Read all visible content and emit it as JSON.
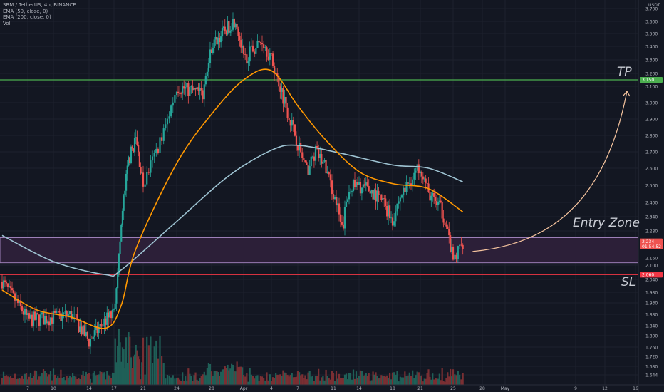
{
  "header": {
    "symbol": "SRM / TetherUS, 4h, BINANCE",
    "indicator_1": "EMA (50, close, 0)",
    "indicator_2": "EMA (200, close, 0)",
    "indicator_3": "Vol"
  },
  "annotations": {
    "tp": "TP",
    "entry": "Entry Zone",
    "sl": "SL"
  },
  "price_axis": {
    "currency": "USDT",
    "ticks": [
      "3.700",
      "3.600",
      "3.500",
      "3.400",
      "3.300",
      "3.200",
      "3.100",
      "3.000",
      "2.900",
      "2.800",
      "2.700",
      "2.600",
      "2.500",
      "2.400",
      "2.340",
      "2.280",
      "2.220",
      "2.160",
      "2.100",
      "2.040",
      "1.980",
      "1.930",
      "1.880",
      "1.840",
      "1.800",
      "1.760",
      "1.720",
      "1.680",
      "1.644"
    ],
    "tags": {
      "tp": "3.150",
      "current": "2.234",
      "countdown": "01:54:52",
      "sl": "2.060"
    }
  },
  "time_axis": {
    "ticks": [
      "7",
      "10",
      "14",
      "17",
      "21",
      "24",
      "28",
      "Apr",
      "4",
      "7",
      "11",
      "14",
      "18",
      "21",
      "25",
      "28",
      "May",
      "9",
      "12",
      "16"
    ]
  },
  "colors": {
    "background": "#131722",
    "grid": "#1e222d",
    "up": "#26a69a",
    "down": "#ef5350",
    "ema50": "#ff9800",
    "ema200": "#9ec3d2",
    "tp_line": "#4caf50",
    "sl_line": "#f23645",
    "zone_fill": "#2c1f38",
    "zone_border": "#9c7fb8",
    "arrow": "#f7c59f",
    "text": "#b2b5be"
  },
  "chart_data": {
    "type": "candlestick",
    "symbol": "SRM/USDT",
    "interval": "4h",
    "exchange": "BINANCE",
    "ylim": [
      1.63,
      3.72
    ],
    "levels": {
      "take_profit": 3.15,
      "entry_zone": [
        2.12,
        2.25
      ],
      "stop_loss": 2.06,
      "current_price": 2.234
    },
    "price_path": [
      {
        "date": "Mar 4",
        "price": 2.03
      },
      {
        "date": "Mar 7",
        "price": 1.86
      },
      {
        "date": "Mar 10",
        "price": 1.87
      },
      {
        "date": "Mar 12",
        "price": 1.88
      },
      {
        "date": "Mar 14",
        "price": 1.78
      },
      {
        "date": "Mar 16",
        "price": 1.86
      },
      {
        "date": "Mar 17",
        "price": 1.88
      },
      {
        "date": "Mar 18",
        "price": 2.3
      },
      {
        "date": "Mar 19",
        "price": 2.65
      },
      {
        "date": "Mar 20",
        "price": 2.78
      },
      {
        "date": "Mar 21",
        "price": 2.5
      },
      {
        "date": "Mar 23",
        "price": 2.85
      },
      {
        "date": "Mar 24",
        "price": 3.1
      },
      {
        "date": "Mar 27",
        "price": 3.05
      },
      {
        "date": "Mar 28",
        "price": 3.4
      },
      {
        "date": "Mar 30",
        "price": 3.55
      },
      {
        "date": "Mar 31",
        "price": 3.62
      },
      {
        "date": "Apr 1",
        "price": 3.3
      },
      {
        "date": "Apr 3",
        "price": 3.45
      },
      {
        "date": "Apr 4",
        "price": 3.3
      },
      {
        "date": "Apr 5",
        "price": 3.1
      },
      {
        "date": "Apr 7",
        "price": 2.75
      },
      {
        "date": "Apr 8",
        "price": 2.58
      },
      {
        "date": "Apr 9",
        "price": 2.7
      },
      {
        "date": "Apr 10",
        "price": 2.62
      },
      {
        "date": "Apr 12",
        "price": 2.28
      },
      {
        "date": "Apr 13",
        "price": 2.5
      },
      {
        "date": "Apr 15",
        "price": 2.48
      },
      {
        "date": "Apr 17",
        "price": 2.4
      },
      {
        "date": "Apr 18",
        "price": 2.33
      },
      {
        "date": "Apr 19",
        "price": 2.45
      },
      {
        "date": "Apr 21",
        "price": 2.62
      },
      {
        "date": "Apr 22",
        "price": 2.45
      },
      {
        "date": "Apr 23",
        "price": 2.4
      },
      {
        "date": "Apr 24",
        "price": 2.34
      },
      {
        "date": "Apr 25",
        "price": 2.14
      },
      {
        "date": "Apr 26",
        "price": 2.234
      }
    ],
    "ema50": [
      {
        "date": "Mar 4",
        "value": 1.99
      },
      {
        "date": "Mar 8",
        "value": 1.9
      },
      {
        "date": "Mar 12",
        "value": 1.87
      },
      {
        "date": "Mar 16",
        "value": 1.83
      },
      {
        "date": "Mar 18",
        "value": 1.92
      },
      {
        "date": "Mar 20",
        "value": 2.2
      },
      {
        "date": "Mar 24",
        "value": 2.63
      },
      {
        "date": "Mar 28",
        "value": 2.93
      },
      {
        "date": "Apr 1",
        "value": 3.15
      },
      {
        "date": "Apr 4",
        "value": 3.22
      },
      {
        "date": "Apr 7",
        "value": 2.98
      },
      {
        "date": "Apr 10",
        "value": 2.78
      },
      {
        "date": "Apr 14",
        "value": 2.58
      },
      {
        "date": "Apr 18",
        "value": 2.51
      },
      {
        "date": "Apr 22",
        "value": 2.48
      },
      {
        "date": "Apr 26",
        "value": 2.36
      }
    ],
    "ema200": [
      {
        "date": "Mar 4",
        "value": 2.26
      },
      {
        "date": "Mar 10",
        "value": 2.13
      },
      {
        "date": "Mar 16",
        "value": 2.06
      },
      {
        "date": "Mar 18",
        "value": 2.08
      },
      {
        "date": "Mar 24",
        "value": 2.32
      },
      {
        "date": "Mar 30",
        "value": 2.55
      },
      {
        "date": "Apr 4",
        "value": 2.71
      },
      {
        "date": "Apr 7",
        "value": 2.74
      },
      {
        "date": "Apr 12",
        "value": 2.69
      },
      {
        "date": "Apr 18",
        "value": 2.62
      },
      {
        "date": "Apr 22",
        "value": 2.6
      },
      {
        "date": "Apr 26",
        "value": 2.52
      }
    ],
    "projection": {
      "from": {
        "date": "Apr 27",
        "price": 2.23
      },
      "to": {
        "date": "May 16",
        "price": 3.1
      }
    }
  }
}
